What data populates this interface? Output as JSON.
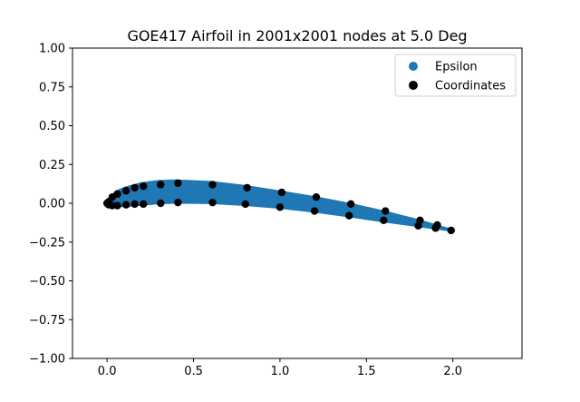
{
  "chart_data": {
    "type": "scatter",
    "title": "GOE417 Airfoil in 2001x2001 nodes at 5.0 Deg",
    "xlabel": "",
    "ylabel": "",
    "xlim": [
      -0.2,
      2.4
    ],
    "ylim": [
      -1.0,
      1.0
    ],
    "xticks": [
      0.0,
      0.5,
      1.0,
      1.5,
      2.0
    ],
    "xtick_labels": [
      "0.0",
      "0.5",
      "1.0",
      "1.5",
      "2.0"
    ],
    "yticks": [
      -1.0,
      -0.75,
      -0.5,
      -0.25,
      0.0,
      0.25,
      0.5,
      0.75,
      1.0
    ],
    "ytick_labels": [
      "−1.00",
      "−0.75",
      "−0.50",
      "−0.25",
      "0.00",
      "0.25",
      "0.50",
      "0.75",
      "1.00"
    ],
    "grid": false,
    "legend_position": "top-right",
    "series": [
      {
        "name": "Epsilon",
        "color": "#1f77b4",
        "style": "filled-region",
        "upper": [
          [
            0.0,
            0.0
          ],
          [
            0.01,
            0.03
          ],
          [
            0.05,
            0.075
          ],
          [
            0.1,
            0.1
          ],
          [
            0.2,
            0.13
          ],
          [
            0.3,
            0.145
          ],
          [
            0.4,
            0.148
          ],
          [
            0.6,
            0.138
          ],
          [
            0.8,
            0.112
          ],
          [
            1.0,
            0.077
          ],
          [
            1.2,
            0.04
          ],
          [
            1.4,
            -0.002
          ],
          [
            1.6,
            -0.052
          ],
          [
            1.8,
            -0.108
          ],
          [
            1.9,
            -0.14
          ],
          [
            2.0,
            -0.172
          ]
        ],
        "lower": [
          [
            0.0,
            0.0
          ],
          [
            0.01,
            -0.012
          ],
          [
            0.05,
            -0.02
          ],
          [
            0.1,
            -0.018
          ],
          [
            0.2,
            -0.01
          ],
          [
            0.3,
            -0.001
          ],
          [
            0.4,
            0.003
          ],
          [
            0.6,
            0.001
          ],
          [
            0.8,
            -0.012
          ],
          [
            1.0,
            -0.03
          ],
          [
            1.2,
            -0.055
          ],
          [
            1.4,
            -0.085
          ],
          [
            1.6,
            -0.118
          ],
          [
            1.8,
            -0.148
          ],
          [
            1.9,
            -0.163
          ],
          [
            2.0,
            -0.178
          ]
        ]
      },
      {
        "name": "Coordinates",
        "color": "#000000",
        "style": "points",
        "points": [
          [
            0.0,
            0.0
          ],
          [
            0.01,
            0.01
          ],
          [
            0.03,
            0.04
          ],
          [
            0.06,
            0.06
          ],
          [
            0.11,
            0.08
          ],
          [
            0.16,
            0.1
          ],
          [
            0.21,
            0.11
          ],
          [
            0.31,
            0.12
          ],
          [
            0.41,
            0.13
          ],
          [
            0.61,
            0.12
          ],
          [
            0.81,
            0.1
          ],
          [
            1.01,
            0.07
          ],
          [
            1.21,
            0.04
          ],
          [
            1.41,
            -0.005
          ],
          [
            1.61,
            -0.05
          ],
          [
            1.81,
            -0.11
          ],
          [
            1.91,
            -0.14
          ],
          [
            1.99,
            -0.175
          ],
          [
            0.01,
            -0.01
          ],
          [
            0.03,
            -0.015
          ],
          [
            0.06,
            -0.015
          ],
          [
            0.11,
            -0.01
          ],
          [
            0.16,
            -0.005
          ],
          [
            0.21,
            -0.005
          ],
          [
            0.31,
            0.0
          ],
          [
            0.41,
            0.005
          ],
          [
            0.61,
            0.005
          ],
          [
            0.8,
            -0.005
          ],
          [
            1.0,
            -0.025
          ],
          [
            1.2,
            -0.05
          ],
          [
            1.4,
            -0.08
          ],
          [
            1.6,
            -0.11
          ],
          [
            1.8,
            -0.145
          ],
          [
            1.9,
            -0.16
          ]
        ]
      }
    ]
  }
}
